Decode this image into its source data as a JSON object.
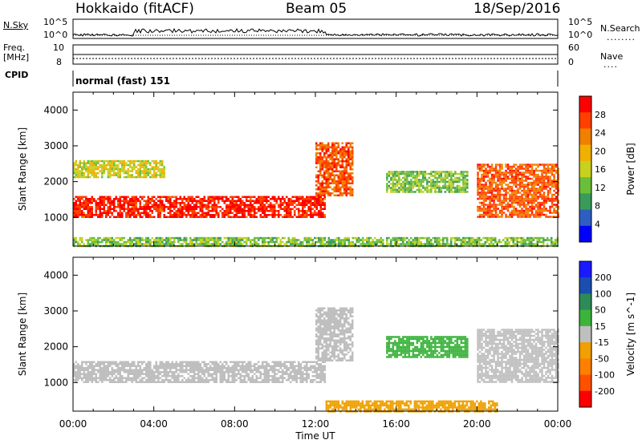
{
  "header": {
    "title": "Hokkaido (fitACF)",
    "beam": "Beam 05",
    "date": "18/Sep/2016"
  },
  "top_panels": {
    "nsky_label": "N.Sky",
    "nsearch_label": "N.Search",
    "noise_ticks": [
      "10^5",
      "10^0"
    ],
    "freq_label_1": "Freq.",
    "freq_label_2": "[MHz]",
    "freq_ticks": [
      "10",
      "8"
    ],
    "nave_label": "Nave",
    "nave_ticks": [
      "60",
      "0"
    ],
    "cpid_label": "CPID",
    "mode_text": "normal (fast) 151"
  },
  "colors": {
    "power": [
      "#0000ff",
      "#2e5fc0",
      "#3a9a5a",
      "#6abf3a",
      "#c8d020",
      "#f0b000",
      "#f08000",
      "#ff4000",
      "#ff0000"
    ],
    "velocity": [
      "#1a1aff",
      "#1a4fb0",
      "#2e8b57",
      "#3cb43c",
      "#bfbfbf",
      "#f0a000",
      "#ff8000",
      "#ff5000",
      "#ff0000"
    ]
  },
  "chart_data": [
    {
      "type": "heatmap",
      "name": "power",
      "xlabel": "",
      "ylabel": "Slant Range [km]",
      "xlim": [
        "00:00",
        "24:00"
      ],
      "ylim": [
        200,
        4500
      ],
      "y_ticks": [
        1000,
        2000,
        3000,
        4000
      ],
      "colorbar": {
        "label": "Power [dB]",
        "ticks": [
          "4",
          "8",
          "12",
          "16",
          "20",
          "24",
          "28"
        ],
        "range": [
          0,
          30
        ]
      },
      "features": [
        {
          "t_start": 0.0,
          "t_end": 12.5,
          "range_lo": 1000,
          "range_hi": 1600,
          "power_db": 27
        },
        {
          "t_start": 0.0,
          "t_end": 4.5,
          "range_lo": 2100,
          "range_hi": 2600,
          "power_db": 16
        },
        {
          "t_start": 12.0,
          "t_end": 13.8,
          "range_lo": 1600,
          "range_hi": 3100,
          "power_db": 24
        },
        {
          "t_start": 15.5,
          "t_end": 19.5,
          "range_lo": 1700,
          "range_hi": 2300,
          "power_db": 12
        },
        {
          "t_start": 20.0,
          "t_end": 24.0,
          "range_lo": 1000,
          "range_hi": 2500,
          "power_db": 24
        },
        {
          "t_start": 0.0,
          "t_end": 24.0,
          "range_lo": 200,
          "range_hi": 450,
          "power_db": 12
        }
      ]
    },
    {
      "type": "heatmap",
      "name": "velocity",
      "xlabel": "Time UT",
      "ylabel": "Slant Range [km]",
      "xlim": [
        "00:00",
        "24:00"
      ],
      "x_ticks": [
        "00:00",
        "04:00",
        "08:00",
        "12:00",
        "16:00",
        "20:00",
        "00:00"
      ],
      "ylim": [
        200,
        4500
      ],
      "y_ticks": [
        1000,
        2000,
        3000,
        4000
      ],
      "colorbar": {
        "label": "Velocity [m s^-1]",
        "ticks": [
          "200",
          "100",
          "50",
          "15",
          "-15",
          "-50",
          "-100",
          "-200"
        ],
        "range": [
          -250,
          250
        ]
      },
      "features": [
        {
          "t_start": 0.0,
          "t_end": 12.5,
          "range_lo": 1000,
          "range_hi": 1600,
          "velocity": 0
        },
        {
          "t_start": 12.0,
          "t_end": 13.8,
          "range_lo": 1600,
          "range_hi": 3100,
          "velocity": 0
        },
        {
          "t_start": 15.5,
          "t_end": 19.5,
          "range_lo": 1700,
          "range_hi": 2300,
          "velocity": 50
        },
        {
          "t_start": 20.0,
          "t_end": 24.0,
          "range_lo": 1000,
          "range_hi": 2500,
          "velocity": 0
        },
        {
          "t_start": 12.5,
          "t_end": 21.0,
          "range_lo": 200,
          "range_hi": 500,
          "velocity": -50
        }
      ]
    }
  ]
}
